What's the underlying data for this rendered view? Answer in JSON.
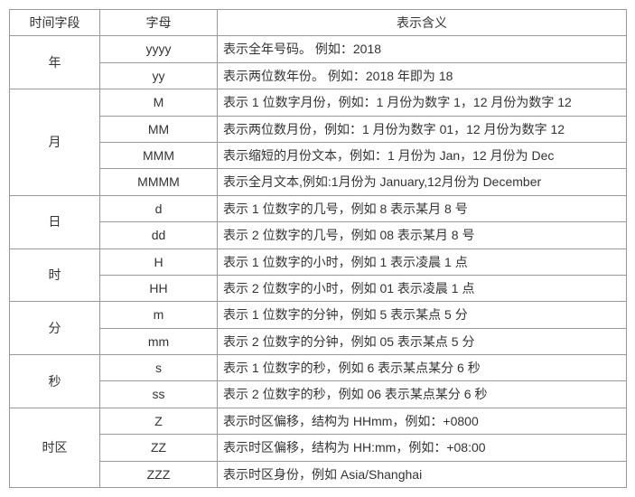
{
  "table": {
    "headers": [
      "时间字段",
      "字母",
      "表示含义"
    ],
    "groups": [
      {
        "field": "年",
        "rows": [
          {
            "letter": "yyyy",
            "meaning": "表示全年号码。 例如：2018"
          },
          {
            "letter": "yy",
            "meaning": "表示两位数年份。 例如：2018 年即为 18"
          }
        ]
      },
      {
        "field": "月",
        "rows": [
          {
            "letter": "M",
            "meaning": "表示 1 位数字月份，例如：1 月份为数字 1，12 月份为数字 12"
          },
          {
            "letter": "MM",
            "meaning": "表示两位数月份，例如：1 月份为数字 01，12 月份为数字 12"
          },
          {
            "letter": "MMM",
            "meaning": "表示缩短的月份文本，例如：1 月份为 Jan，12 月份为 Dec"
          },
          {
            "letter": "MMMM",
            "meaning": "表示全月文本,例如:1月份为 January,12月份为 December"
          }
        ]
      },
      {
        "field": "日",
        "rows": [
          {
            "letter": "d",
            "meaning": "表示 1 位数字的几号，例如 8 表示某月 8 号"
          },
          {
            "letter": "dd",
            "meaning": "表示 2 位数字的几号，例如 08 表示某月 8 号"
          }
        ]
      },
      {
        "field": "时",
        "rows": [
          {
            "letter": "H",
            "meaning": "表示 1 位数字的小时，例如 1 表示凌晨 1 点"
          },
          {
            "letter": "HH",
            "meaning": "表示 2 位数字的小时，例如 01 表示凌晨 1 点"
          }
        ]
      },
      {
        "field": "分",
        "rows": [
          {
            "letter": "m",
            "meaning": "表示 1 位数字的分钟，例如 5 表示某点 5 分"
          },
          {
            "letter": "mm",
            "meaning": "表示 2 位数字的分钟，例如 05 表示某点 5 分"
          }
        ]
      },
      {
        "field": "秒",
        "rows": [
          {
            "letter": "s",
            "meaning": "表示 1 位数字的秒，例如 6 表示某点某分 6 秒"
          },
          {
            "letter": "ss",
            "meaning": "表示 2 位数字的秒，例如 06 表示某点某分 6 秒"
          }
        ]
      },
      {
        "field": "时区",
        "rows": [
          {
            "letter": "Z",
            "meaning": "表示时区偏移，结构为 HHmm，例如：+0800"
          },
          {
            "letter": "ZZ",
            "meaning": "表示时区偏移，结构为 HH:mm，例如：+08:00"
          },
          {
            "letter": "ZZZ",
            "meaning": "表示时区身份，例如 Asia/Shanghai"
          }
        ]
      }
    ]
  }
}
